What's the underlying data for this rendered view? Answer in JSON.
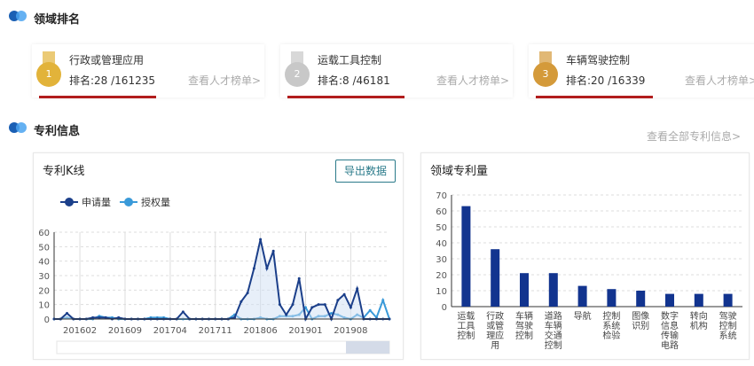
{
  "sections": {
    "ranking": "领域排名",
    "patent": "专利信息"
  },
  "ranks": [
    {
      "field": "行政或管理应用",
      "rank": "排名:28 /161235",
      "link": "查看人才榜单>",
      "medal": "1",
      "medal_color": "#e2b33a"
    },
    {
      "field": "运载工具控制",
      "rank": "排名:8 /46181",
      "link": "查看人才榜单>",
      "medal": "2",
      "medal_color": "#c8c8c8"
    },
    {
      "field": "车辆驾驶控制",
      "rank": "排名:20 /16339",
      "link": "查看人才榜单>",
      "medal": "3",
      "medal_color": "#d49a3a"
    }
  ],
  "view_all_patents": "查看全部专利信息>",
  "kline": {
    "title": "专利K线",
    "export_label": "导出数据"
  },
  "bars": {
    "title": "领域专利量"
  },
  "colors": {
    "apply": "#1b3f8a",
    "grant": "#3a9ad9",
    "bar": "#12348f",
    "underline": "#b21d1d"
  },
  "chart_data": [
    {
      "type": "line",
      "title": "专利K线",
      "x": [
        "201510",
        "201511",
        "201512",
        "201601",
        "201602",
        "201603",
        "201604",
        "201605",
        "201606",
        "201607",
        "201608",
        "201609",
        "201610",
        "201611",
        "201612",
        "201701",
        "201702",
        "201703",
        "201704",
        "201705",
        "201706",
        "201707",
        "201708",
        "201709",
        "201710",
        "201711",
        "201712",
        "201801",
        "201802",
        "201803",
        "201804",
        "201805",
        "201806",
        "201807",
        "201808",
        "201809",
        "201810",
        "201811",
        "201812",
        "201901",
        "201902",
        "201903",
        "201904",
        "201905",
        "201906",
        "201907",
        "201908",
        "201909",
        "201910",
        "201911",
        "201912",
        "202001",
        "202002"
      ],
      "xticks": [
        "201602",
        "201609",
        "201704",
        "201711",
        "201806",
        "201901",
        "201908"
      ],
      "ylim": [
        0,
        60
      ],
      "yticks": [
        0,
        10,
        20,
        30,
        40,
        50,
        60
      ],
      "legend": "top-left",
      "grid": true,
      "series": [
        {
          "name": "申请量",
          "values": [
            0,
            0,
            4,
            0,
            0,
            0,
            1,
            1,
            1,
            0,
            1,
            0,
            0,
            0,
            0,
            0,
            0,
            0,
            0,
            0,
            5,
            0,
            0,
            0,
            0,
            0,
            0,
            0,
            1,
            12,
            18,
            35,
            55,
            35,
            47,
            10,
            3,
            10,
            28,
            0,
            8,
            10,
            10,
            0,
            13,
            17,
            8,
            21,
            0,
            0,
            0,
            0,
            0
          ]
        },
        {
          "name": "授权量",
          "values": [
            0,
            0,
            1,
            0,
            0,
            0,
            0,
            2,
            1,
            1,
            0,
            0,
            0,
            0,
            0,
            1,
            1,
            1,
            0,
            0,
            0,
            0,
            0,
            0,
            0,
            0,
            0,
            0,
            3,
            0,
            0,
            0,
            1,
            0,
            0,
            2,
            2,
            2,
            3,
            8,
            0,
            2,
            2,
            4,
            3,
            1,
            0,
            3,
            1,
            6,
            1,
            13,
            0
          ]
        }
      ]
    },
    {
      "type": "bar",
      "title": "领域专利量",
      "categories": [
        "运载工具控制",
        "行政或管理应用",
        "车辆驾驶控制",
        "道路车辆交通控制",
        "导航",
        "控制系统检验",
        "图像识别",
        "数字信息传输电路",
        "转向机构",
        "驾驶控制系统"
      ],
      "values": [
        63,
        36,
        21,
        21,
        13,
        11,
        10,
        8,
        8,
        8
      ],
      "ylim": [
        0,
        70
      ],
      "yticks": [
        0,
        10,
        20,
        30,
        40,
        50,
        60,
        70
      ],
      "grid": true
    }
  ]
}
